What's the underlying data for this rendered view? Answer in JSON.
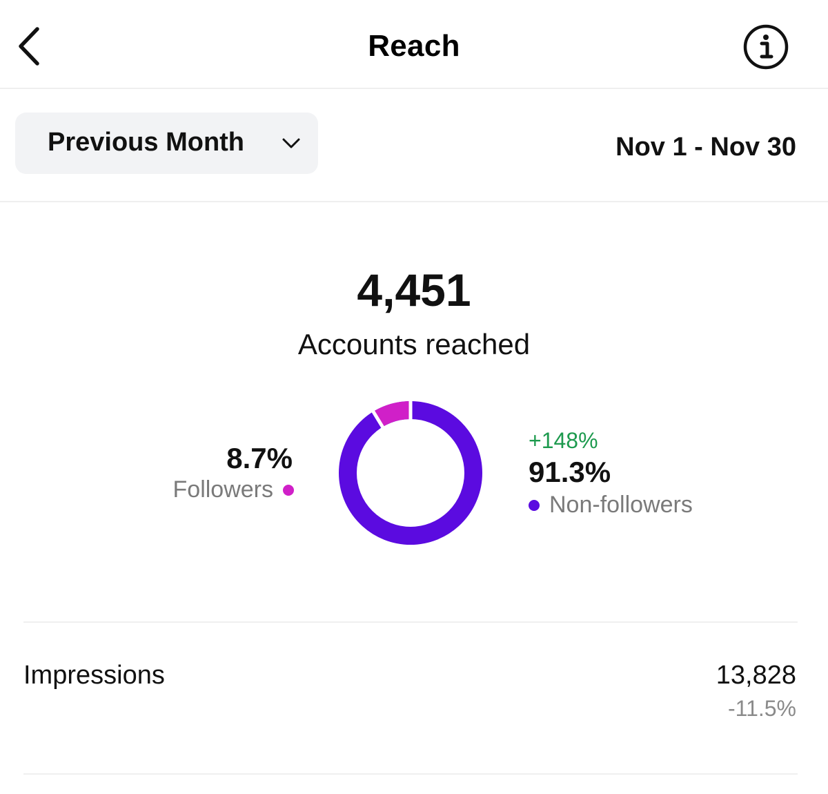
{
  "header": {
    "title": "Reach",
    "back_icon": "chevron-left-icon",
    "info_icon": "info-icon"
  },
  "filter": {
    "range_label": "Previous Month",
    "date_range": "Nov 1 - Nov 30"
  },
  "summary": {
    "accounts_reached": "4,451",
    "accounts_label": "Accounts reached"
  },
  "breakdown": {
    "followers": {
      "percent": "8.7%",
      "label": "Followers",
      "share": 8.7,
      "color": "#d020c8"
    },
    "non_followers": {
      "change": "+148%",
      "percent": "91.3%",
      "label": "Non-followers",
      "share": 91.3,
      "color": "#5b0be0"
    }
  },
  "metrics": {
    "impressions": {
      "label": "Impressions",
      "value": "13,828",
      "change": "-11.5%"
    }
  }
}
